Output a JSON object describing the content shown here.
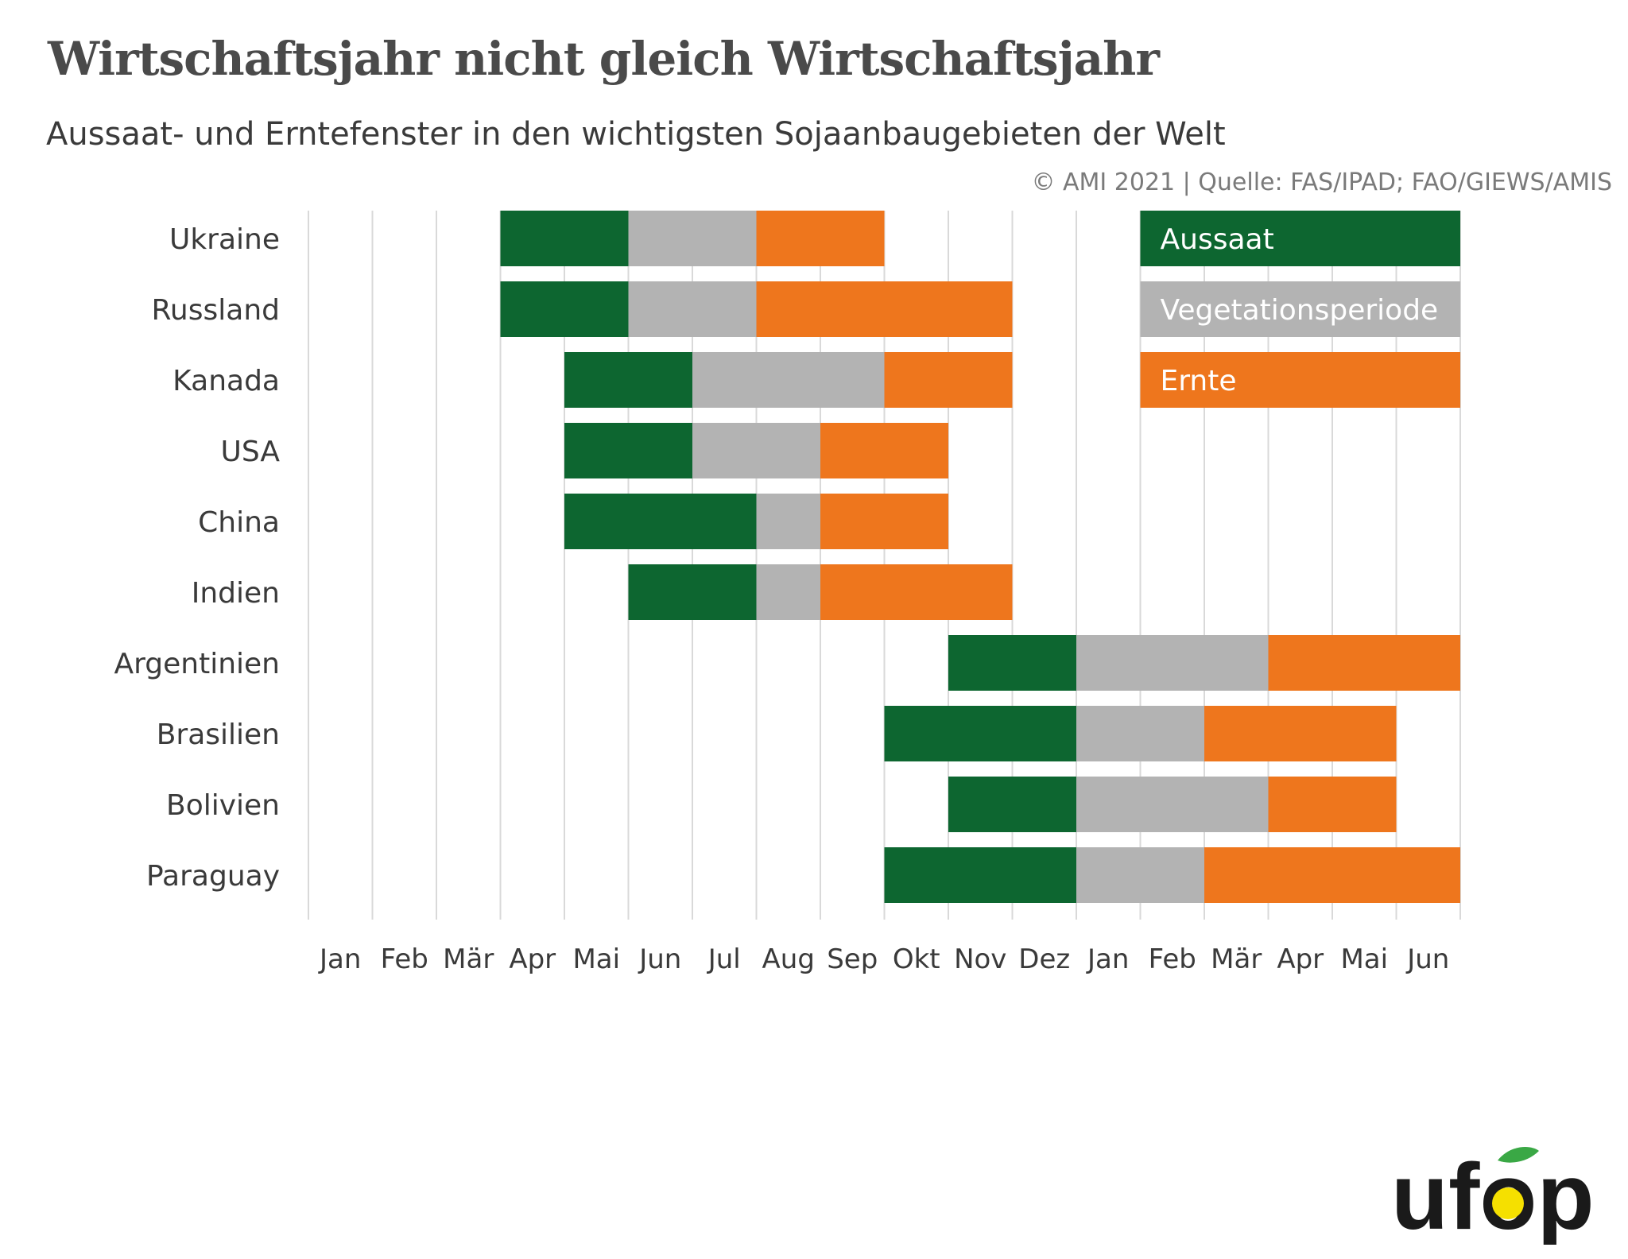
{
  "title": "Wirtschaftsjahr nicht gleich Wirtschaftsjahr",
  "subtitle": "Aussaat- und Erntefenster in den wichtigsten Sojaanbaugebieten der Welt",
  "source": "© AMI 2021 | Quelle: FAS/IPAD; FAO/GIEWS/AMIS",
  "logo_text": "ufop",
  "colors": {
    "aussaat": "#0d6630",
    "vegetation": "#b3b3b3",
    "ernte": "#ee761d",
    "text": "#3a3a3a",
    "grid": "#d9d9d9",
    "title": "#4a4a4a"
  },
  "chart_data": {
    "type": "gantt",
    "x_ticks": [
      "Jan",
      "Feb",
      "Mär",
      "Apr",
      "Mai",
      "Jun",
      "Jul",
      "Aug",
      "Sep",
      "Okt",
      "Nov",
      "Dez",
      "Jan",
      "Feb",
      "Mär",
      "Apr",
      "Mai",
      "Jun"
    ],
    "legend": [
      {
        "key": "aussaat",
        "label": "Aussaat"
      },
      {
        "key": "vegetation",
        "label": "Vegetationsperiode"
      },
      {
        "key": "ernte",
        "label": "Ernte"
      }
    ],
    "legend_position": "top-right",
    "grid": true,
    "note": "segment start/end are month indices on the 18-month axis (0 = start of first Jan, 18 = end of second Jun)",
    "rows": [
      {
        "label": "Ukraine",
        "segments": [
          {
            "type": "aussaat",
            "start": 3,
            "end": 5
          },
          {
            "type": "vegetation",
            "start": 5,
            "end": 7
          },
          {
            "type": "ernte",
            "start": 7,
            "end": 9
          }
        ]
      },
      {
        "label": "Russland",
        "segments": [
          {
            "type": "aussaat",
            "start": 3,
            "end": 5
          },
          {
            "type": "vegetation",
            "start": 5,
            "end": 7
          },
          {
            "type": "ernte",
            "start": 7,
            "end": 11
          }
        ]
      },
      {
        "label": "Kanada",
        "segments": [
          {
            "type": "aussaat",
            "start": 4,
            "end": 6
          },
          {
            "type": "vegetation",
            "start": 6,
            "end": 9
          },
          {
            "type": "ernte",
            "start": 9,
            "end": 11
          }
        ]
      },
      {
        "label": "USA",
        "segments": [
          {
            "type": "aussaat",
            "start": 4,
            "end": 6
          },
          {
            "type": "vegetation",
            "start": 6,
            "end": 8
          },
          {
            "type": "ernte",
            "start": 8,
            "end": 10
          }
        ]
      },
      {
        "label": "China",
        "segments": [
          {
            "type": "aussaat",
            "start": 4,
            "end": 7
          },
          {
            "type": "vegetation",
            "start": 7,
            "end": 8
          },
          {
            "type": "ernte",
            "start": 8,
            "end": 10
          }
        ]
      },
      {
        "label": "Indien",
        "segments": [
          {
            "type": "aussaat",
            "start": 5,
            "end": 7
          },
          {
            "type": "vegetation",
            "start": 7,
            "end": 8
          },
          {
            "type": "ernte",
            "start": 8,
            "end": 11
          }
        ]
      },
      {
        "label": "Argentinien",
        "segments": [
          {
            "type": "aussaat",
            "start": 10,
            "end": 12
          },
          {
            "type": "vegetation",
            "start": 12,
            "end": 15
          },
          {
            "type": "ernte",
            "start": 15,
            "end": 18
          }
        ]
      },
      {
        "label": "Brasilien",
        "segments": [
          {
            "type": "aussaat",
            "start": 9,
            "end": 12
          },
          {
            "type": "vegetation",
            "start": 12,
            "end": 14
          },
          {
            "type": "ernte",
            "start": 14,
            "end": 17
          }
        ]
      },
      {
        "label": "Bolivien",
        "segments": [
          {
            "type": "aussaat",
            "start": 10,
            "end": 12
          },
          {
            "type": "vegetation",
            "start": 12,
            "end": 15
          },
          {
            "type": "ernte",
            "start": 15,
            "end": 17
          }
        ]
      },
      {
        "label": "Paraguay",
        "segments": [
          {
            "type": "aussaat",
            "start": 9,
            "end": 12
          },
          {
            "type": "vegetation",
            "start": 12,
            "end": 14
          },
          {
            "type": "ernte",
            "start": 14,
            "end": 18
          }
        ]
      }
    ]
  }
}
